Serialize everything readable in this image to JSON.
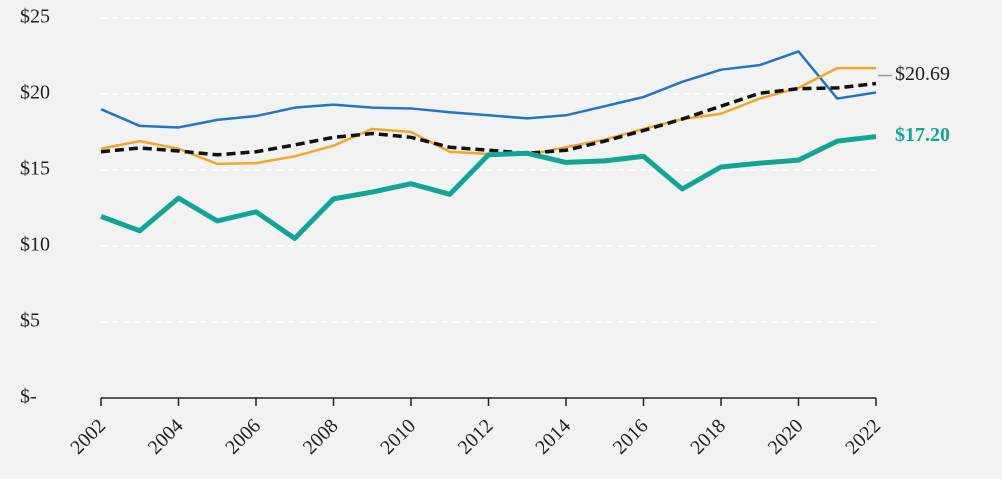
{
  "chart_data": {
    "type": "line",
    "x": [
      2002,
      2003,
      2004,
      2005,
      2006,
      2007,
      2008,
      2009,
      2010,
      2011,
      2012,
      2013,
      2014,
      2015,
      2016,
      2017,
      2018,
      2019,
      2020,
      2021,
      2022
    ],
    "xlim": [
      2002,
      2022
    ],
    "xticks": [
      2002,
      2004,
      2006,
      2008,
      2010,
      2012,
      2014,
      2016,
      2018,
      2020,
      2022
    ],
    "ylim": [
      0,
      25
    ],
    "yticks": [
      {
        "value": 0,
        "label": "$-"
      },
      {
        "value": 5,
        "label": "$5"
      },
      {
        "value": 10,
        "label": "$10"
      },
      {
        "value": 15,
        "label": "$15"
      },
      {
        "value": 20,
        "label": "$20"
      },
      {
        "value": 25,
        "label": "$25"
      }
    ],
    "grid": true,
    "series": [
      {
        "color": "#1f77c4",
        "width": 2.5,
        "dashed": false,
        "values": [
          19.0,
          17.9,
          17.8,
          18.3,
          18.55,
          19.1,
          19.3,
          19.1,
          19.05,
          18.8,
          18.6,
          18.4,
          18.6,
          19.2,
          19.8,
          20.8,
          21.6,
          21.9,
          22.8,
          19.7,
          20.1
        ]
      },
      {
        "color": "#f5a623",
        "width": 2.5,
        "dashed": false,
        "values": [
          16.4,
          16.9,
          16.4,
          15.4,
          15.45,
          15.9,
          16.6,
          17.7,
          17.5,
          16.2,
          16.05,
          16.0,
          16.5,
          17.0,
          17.7,
          18.35,
          18.7,
          19.7,
          20.4,
          21.7,
          21.7
        ]
      },
      {
        "color": "#111111",
        "width": 3.5,
        "dashed": true,
        "values": [
          16.2,
          16.45,
          16.25,
          16.0,
          16.2,
          16.65,
          17.15,
          17.4,
          17.15,
          16.5,
          16.3,
          16.1,
          16.3,
          16.9,
          17.6,
          18.35,
          19.2,
          20.05,
          20.35,
          20.4,
          20.69
        ],
        "value_labels": [
          null,
          null,
          null,
          null,
          null,
          null,
          null,
          null,
          null,
          null,
          null,
          null,
          null,
          null,
          null,
          null,
          null,
          null,
          null,
          null,
          "$20.69"
        ]
      },
      {
        "color": "#12a595",
        "width": 5,
        "dashed": false,
        "values": [
          11.95,
          11.0,
          13.15,
          11.65,
          12.25,
          10.5,
          13.1,
          13.55,
          14.1,
          13.4,
          16.0,
          16.1,
          15.5,
          15.6,
          15.9,
          13.75,
          15.2,
          15.45,
          15.65,
          16.9,
          17.2
        ],
        "value_labels": [
          null,
          null,
          null,
          null,
          null,
          null,
          null,
          null,
          null,
          null,
          null,
          null,
          null,
          null,
          null,
          null,
          null,
          null,
          null,
          null,
          "$17.20"
        ]
      }
    ]
  }
}
